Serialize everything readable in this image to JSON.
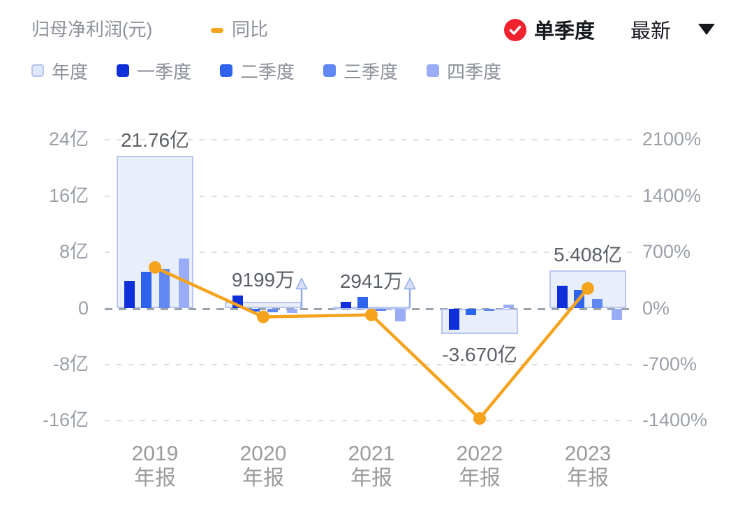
{
  "header": {
    "title": "归母净利润(元)",
    "line_legend_label": "同比",
    "mode_label": "单季度",
    "latest_label": "最新"
  },
  "legend": {
    "items": [
      {
        "label": "年度",
        "swatch_color": "#dfe7fa",
        "swatch_border": "#b7c4ec"
      },
      {
        "label": "一季度",
        "swatch_color": "#0e2fd9"
      },
      {
        "label": "二季度",
        "swatch_color": "#2e63ee"
      },
      {
        "label": "三季度",
        "swatch_color": "#6187f2"
      },
      {
        "label": "四季度",
        "swatch_color": "#98adf5"
      }
    ]
  },
  "chart_data": {
    "type": "bar+line",
    "title": "归母净利润(元)",
    "categories": [
      "2019",
      "2020",
      "2021",
      "2022",
      "2023"
    ],
    "category_suffix": "年报",
    "annual_series": {
      "name": "年度",
      "unit": "亿元",
      "values": [
        21.76,
        0.9199,
        0.2941,
        -3.67,
        5.408
      ],
      "labels": [
        "21.76亿",
        "9199万",
        "2941万",
        "-3.670亿",
        "5.408亿"
      ]
    },
    "quarter_series": [
      {
        "name": "一季度",
        "unit": "亿元",
        "values": [
          3.9,
          1.8,
          0.9,
          -3.0,
          3.2
        ]
      },
      {
        "name": "二季度",
        "unit": "亿元",
        "values": [
          5.2,
          -0.4,
          1.6,
          -0.9,
          2.6
        ]
      },
      {
        "name": "三季度",
        "unit": "亿元",
        "values": [
          5.6,
          -0.5,
          -0.35,
          -0.3,
          1.3
        ]
      },
      {
        "name": "四季度",
        "unit": "亿元",
        "values": [
          7.1,
          -0.6,
          -1.85,
          0.5,
          -1.6
        ]
      }
    ],
    "line_series": {
      "name": "同比",
      "unit": "%",
      "values": [
        510,
        -105,
        -80,
        -1370,
        250
      ]
    },
    "left_axis": {
      "unit": "亿",
      "tick_values": [
        24,
        16,
        8,
        0,
        -8,
        -16
      ],
      "tick_labels": [
        "24亿",
        "16亿",
        "8亿",
        "0",
        "-8亿",
        "-16亿"
      ],
      "range": [
        -16,
        24
      ]
    },
    "right_axis": {
      "unit": "%",
      "tick_values": [
        2100,
        1400,
        700,
        0,
        -700,
        -1400
      ],
      "tick_labels": [
        "2100%",
        "1400%",
        "700%",
        "0%",
        "-700%",
        "-1400%"
      ],
      "range": [
        -1400,
        2100
      ]
    },
    "grid": true,
    "legend_position": "top",
    "annotation_arrow_years": [
      "2020",
      "2021"
    ],
    "colors": {
      "q1": "#0e2fd9",
      "q2": "#2e63ee",
      "q3": "#6187f2",
      "q4": "#98adf5",
      "annual_fill": "#e9eefb",
      "annual_border": "#b9c6f0",
      "yoy_line": "#f5a31d",
      "badge_red": "#f1222f",
      "arrow_stroke": "#93aaec",
      "arrow_fill": "#d8e1f8"
    }
  }
}
